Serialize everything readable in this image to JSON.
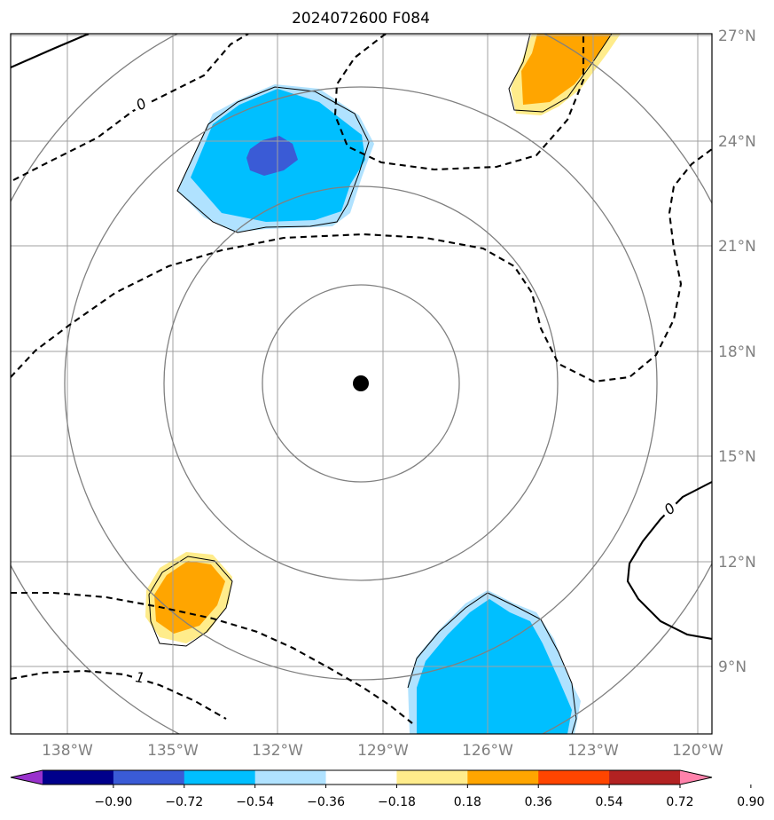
{
  "title": "2024072600 F084",
  "map": {
    "lat_labels": [
      "27°N",
      "24°N",
      "21°N",
      "18°N",
      "15°N",
      "12°N",
      "9°N"
    ],
    "lon_labels": [
      "138°W",
      "135°W",
      "132°W",
      "129°W",
      "126°W",
      "123°W",
      "120°W"
    ],
    "center_marker": "storm-center",
    "contour_labels": [
      "0",
      "0",
      "1"
    ]
  },
  "colorbar": {
    "ticks": [
      "−0.90",
      "−0.72",
      "−0.54",
      "−0.36",
      "−0.18",
      "0.18",
      "0.36",
      "0.54",
      "0.72",
      "0.90"
    ],
    "colors": [
      "#9932cc",
      "#00008b",
      "#3a5bd6",
      "#00bfff",
      "#b0e2ff",
      "#ffffff",
      "#ffec8b",
      "#ffa500",
      "#ff4500",
      "#b22222",
      "#ff82ab"
    ]
  },
  "colors": {
    "grid": "#a0a0a0",
    "rings": "#808080",
    "contour": "#000000"
  }
}
